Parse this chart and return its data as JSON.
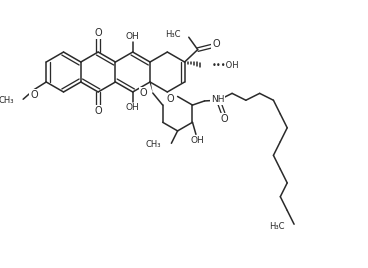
{
  "bg_color": "#ffffff",
  "line_color": "#2a2a2a",
  "line_width": 1.1,
  "font_size": 6.5,
  "figsize": [
    3.68,
    2.68
  ],
  "dpi": 100,
  "xlim": [
    0,
    10
  ],
  "ylim": [
    0,
    7.3
  ]
}
